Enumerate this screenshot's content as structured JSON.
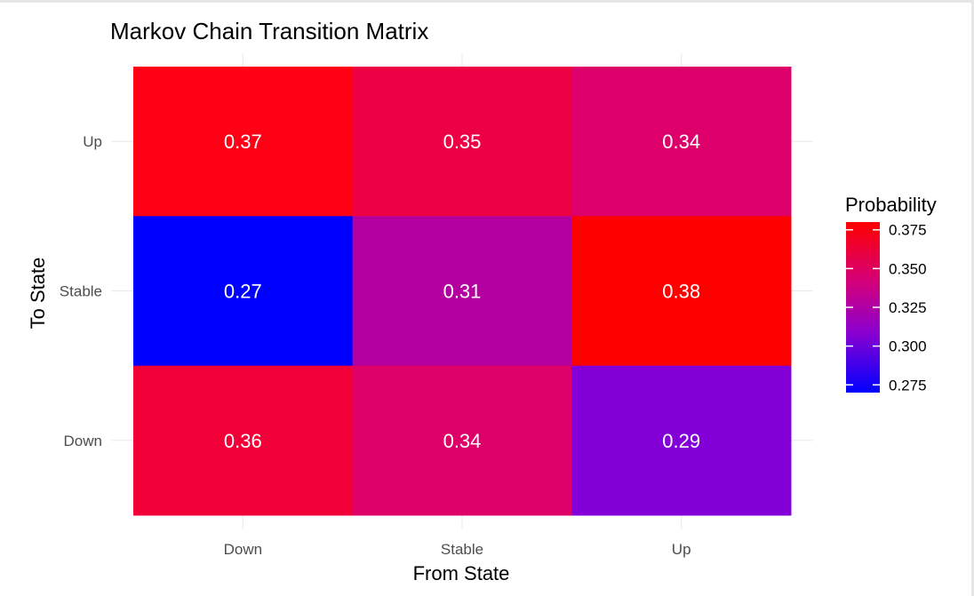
{
  "chart_data": {
    "type": "heatmap",
    "title": "Markov Chain Transition Matrix",
    "xlabel": "From State",
    "ylabel": "To State",
    "x_categories": [
      "Down",
      "Stable",
      "Up"
    ],
    "y_categories": [
      "Down",
      "Stable",
      "Up"
    ],
    "cells": [
      {
        "from": "Down",
        "to": "Up",
        "value": 0.37,
        "label": "0.37",
        "color": "#ff0015"
      },
      {
        "from": "Stable",
        "to": "Up",
        "value": 0.35,
        "label": "0.35",
        "color": "#ee0045"
      },
      {
        "from": "Up",
        "to": "Up",
        "value": 0.34,
        "label": "0.34",
        "color": "#dd006a"
      },
      {
        "from": "Down",
        "to": "Stable",
        "value": 0.27,
        "label": "0.27",
        "color": "#0000ff"
      },
      {
        "from": "Stable",
        "to": "Stable",
        "value": 0.31,
        "label": "0.31",
        "color": "#b3009e"
      },
      {
        "from": "Up",
        "to": "Stable",
        "value": 0.38,
        "label": "0.38",
        "color": "#ff0000"
      },
      {
        "from": "Down",
        "to": "Down",
        "value": 0.36,
        "label": "0.36",
        "color": "#f10038"
      },
      {
        "from": "Stable",
        "to": "Down",
        "value": 0.34,
        "label": "0.34",
        "color": "#dc0068"
      },
      {
        "from": "Up",
        "to": "Down",
        "value": 0.29,
        "label": "0.29",
        "color": "#8300d8"
      }
    ],
    "legend": {
      "title": "Probability",
      "ticks": [
        "0.375",
        "0.350",
        "0.325",
        "0.300",
        "0.275"
      ],
      "tick_values": [
        0.375,
        0.35,
        0.325,
        0.3,
        0.275
      ],
      "range": [
        0.27,
        0.38
      ],
      "low_color": "#0000ff",
      "high_color": "#ff0000",
      "placement": "right"
    },
    "grid": true,
    "grid_color": "#ebebeb"
  }
}
